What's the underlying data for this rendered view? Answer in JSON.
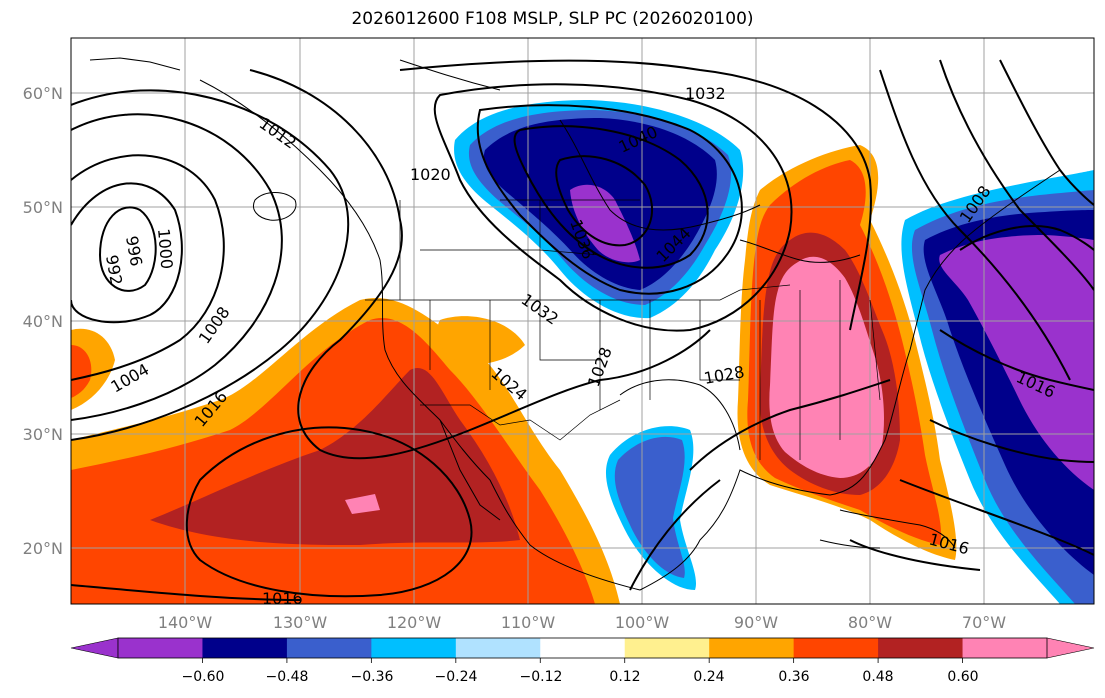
{
  "title": "2026012600 F108 MSLP, SLP PC (2026020100)",
  "map": {
    "lat_labels": [
      "60°N",
      "50°N",
      "40°N",
      "30°N",
      "20°N"
    ],
    "lon_labels": [
      "140°W",
      "130°W",
      "120°W",
      "110°W",
      "100°W",
      "90°W",
      "80°W",
      "70°W"
    ],
    "lat_range": [
      15,
      65
    ],
    "lon_range": [
      -148,
      -59
    ],
    "grid_color": "#a0a0a0",
    "coast_color": "#000000",
    "slp_contour_labels": [
      "1032",
      "1012",
      "1040",
      "1020",
      "1036",
      "1044",
      "996",
      "1000",
      "992",
      "1008",
      "1032",
      "1028",
      "1004",
      "1024",
      "1028",
      "1016",
      "1016",
      "1016",
      "1008",
      "1016"
    ]
  },
  "colorbar": {
    "tick_labels": [
      "−0.60",
      "−0.48",
      "−0.36",
      "−0.24",
      "−0.12",
      "0.12",
      "0.24",
      "0.36",
      "0.48",
      "0.60"
    ],
    "colors": [
      "#9a32cd",
      "#00008b",
      "#3a5fcd",
      "#00bfff",
      "#b0e2ff",
      "#ffffff",
      "#fff08f",
      "#ffa500",
      "#ff4500",
      "#b22222",
      "#ff83b4"
    ],
    "under_color": "#9a32cd",
    "over_color": "#ff83b4"
  }
}
